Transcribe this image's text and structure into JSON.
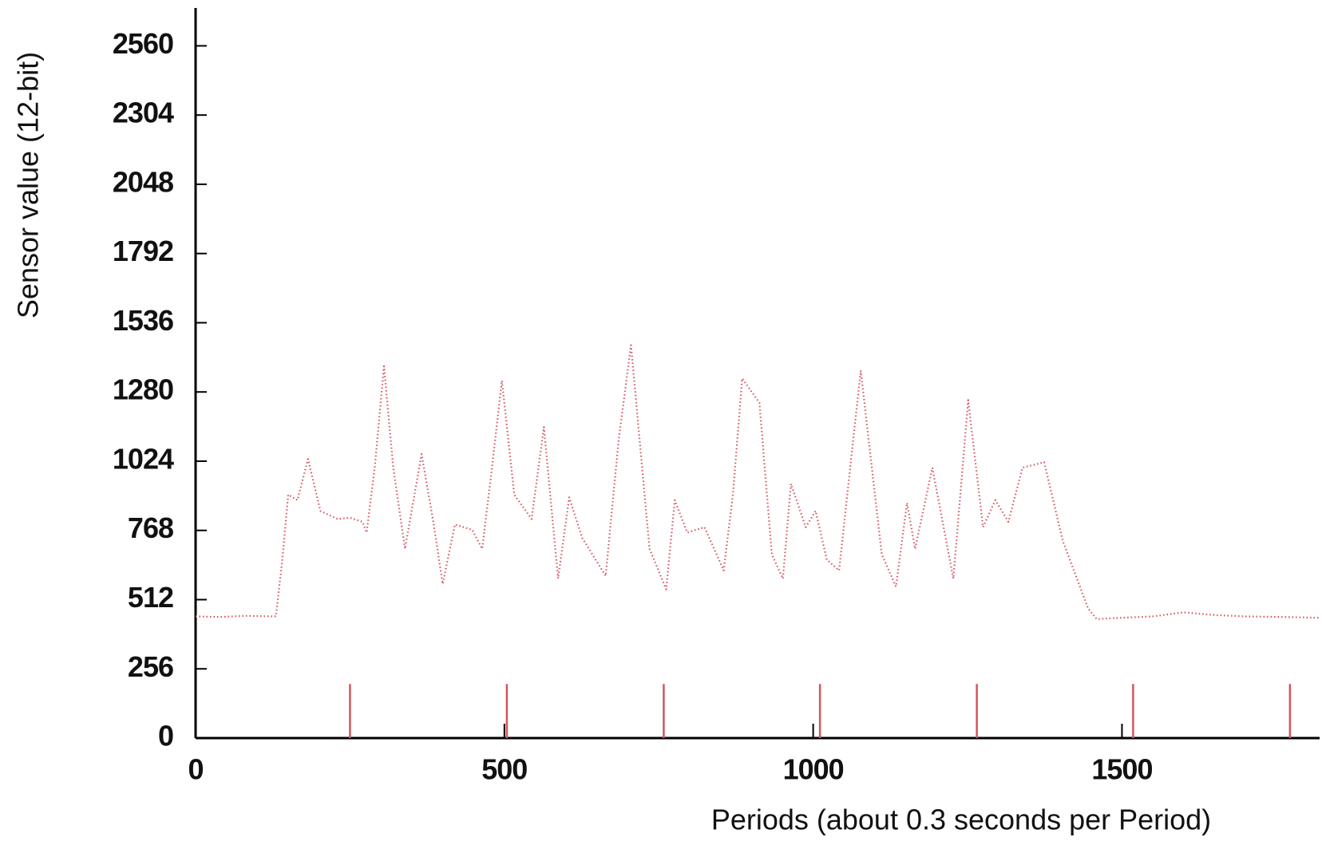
{
  "chart_data": {
    "type": "line",
    "x_label": "Periods (about 0.3 seconds per Period)",
    "y_label": "Sensor value (12-bit)",
    "xlim": [
      0,
      1820
    ],
    "ylim": [
      0,
      2700
    ],
    "xticks": [
      0,
      500,
      1000,
      1500
    ],
    "yticks": [
      0,
      256,
      512,
      768,
      1024,
      1280,
      1536,
      1792,
      2048,
      2304,
      2560
    ],
    "x": [
      0,
      40,
      80,
      130,
      140,
      150,
      165,
      182,
      202,
      230,
      250,
      270,
      277,
      290,
      305,
      320,
      339,
      366,
      385,
      400,
      420,
      448,
      464,
      480,
      496,
      516,
      544,
      564,
      587,
      605,
      626,
      664,
      685,
      705,
      735,
      762,
      776,
      796,
      824,
      855,
      870,
      885,
      913,
      933,
      951,
      964,
      988,
      1004,
      1022,
      1042,
      1060,
      1077,
      1111,
      1134,
      1152,
      1165,
      1193,
      1227,
      1251,
      1275,
      1295,
      1316,
      1339,
      1374,
      1404,
      1445,
      1459,
      1500,
      1550,
      1600,
      1650,
      1700,
      1760,
      1820
    ],
    "series": [
      {
        "color": "#d6545e",
        "values": [
          450,
          448,
          452,
          450,
          650,
          900,
          880,
          1032,
          840,
          810,
          815,
          800,
          760,
          1000,
          1375,
          1000,
          700,
          1050,
          800,
          570,
          790,
          770,
          700,
          1000,
          1322,
          900,
          810,
          1150,
          590,
          890,
          740,
          600,
          1100,
          1453,
          700,
          550,
          880,
          760,
          780,
          620,
          900,
          1330,
          1240,
          680,
          590,
          940,
          780,
          840,
          660,
          620,
          1000,
          1360,
          680,
          560,
          870,
          700,
          1000,
          590,
          1250,
          780,
          880,
          800,
          1000,
          1020,
          730,
          480,
          440,
          445,
          450,
          465,
          455,
          450,
          448,
          445
        ]
      }
    ],
    "markers": {
      "color": "#d6545e",
      "x": [
        250,
        504,
        758,
        1011,
        1265,
        1518,
        1772
      ],
      "values": [
        200,
        200,
        200,
        200,
        200,
        200,
        200
      ]
    }
  }
}
